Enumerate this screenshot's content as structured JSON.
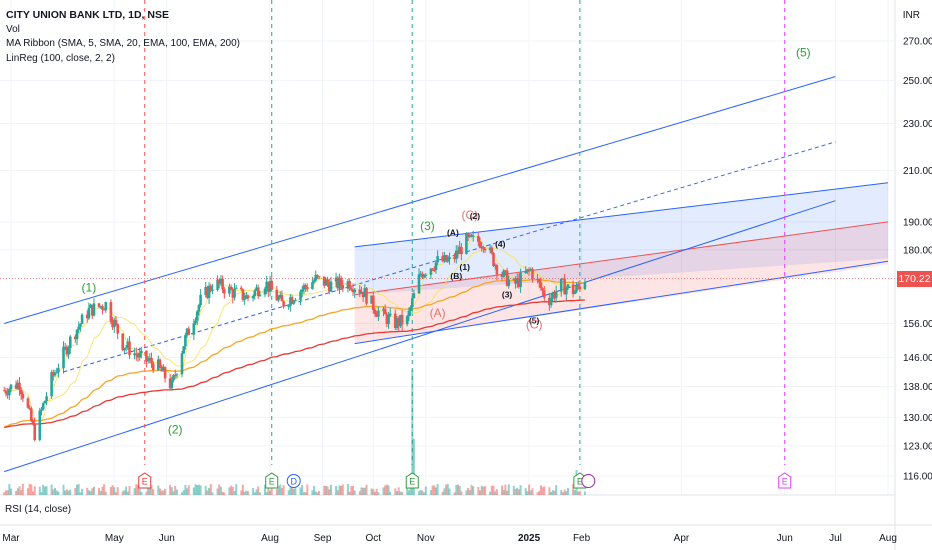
{
  "legend": {
    "symbol": "CITY UNION BANK LTD, 1D, NSE",
    "volume": "Vol",
    "ma_ribbon": "MA Ribbon (SMA, 5, SMA, 20, EMA, 100, EMA, 200)",
    "linreg": "LinReg (100, close, 2, 2)"
  },
  "rsi_label": "RSI (14, close)",
  "currency": "INR",
  "last_price": "170.22",
  "chart_data": {
    "type": "candlestick",
    "title": "CITY UNION BANK LTD, 1D, NSE",
    "y_axis": {
      "scale": "log",
      "ticks": [
        116,
        123,
        130,
        138,
        146,
        156,
        180,
        190,
        210,
        230,
        250,
        270
      ],
      "tick_labels": [
        "116.00",
        "123.00",
        "130.00",
        "138.00",
        "146.00",
        "156.00",
        "180.00",
        "190.00",
        "210.00",
        "230.00",
        "250.00",
        "270.00"
      ]
    },
    "x_axis": {
      "tick_labels": [
        "Mar",
        "May",
        "Jun",
        "Aug",
        "Sep",
        "Oct",
        "Nov",
        "2025",
        "Feb",
        "Apr",
        "Jun",
        "Jul",
        "Aug"
      ],
      "tick_dates": [
        "2024-03-01",
        "2024-05-01",
        "2024-06-01",
        "2024-08-01",
        "2024-09-01",
        "2024-10-01",
        "2024-11-01",
        "2025-01-01",
        "2025-02-01",
        "2025-04-01",
        "2025-06-01",
        "2025-07-01",
        "2025-08-01"
      ]
    },
    "price_path": [
      [
        "2024-02-26",
        137
      ],
      [
        "2024-03-06",
        139
      ],
      [
        "2024-03-15",
        126
      ],
      [
        "2024-03-25",
        140
      ],
      [
        "2024-04-06",
        152
      ],
      [
        "2024-04-16",
        160
      ],
      [
        "2024-04-26",
        162
      ],
      [
        "2024-05-06",
        150
      ],
      [
        "2024-05-16",
        146
      ],
      [
        "2024-05-26",
        144
      ],
      [
        "2024-06-04",
        138
      ],
      [
        "2024-06-11",
        150
      ],
      [
        "2024-06-21",
        163
      ],
      [
        "2024-06-29",
        169
      ],
      [
        "2024-07-09",
        166
      ],
      [
        "2024-07-19",
        164
      ],
      [
        "2024-07-29",
        169
      ],
      [
        "2024-08-08",
        162
      ],
      [
        "2024-08-18",
        166
      ],
      [
        "2024-08-28",
        170
      ],
      [
        "2024-09-07",
        168
      ],
      [
        "2024-09-17",
        169
      ],
      [
        "2024-09-25",
        166
      ],
      [
        "2024-10-03",
        160
      ],
      [
        "2024-10-13",
        156
      ],
      [
        "2024-10-21",
        157
      ],
      [
        "2024-10-29",
        172
      ],
      [
        "2024-11-08",
        176
      ],
      [
        "2024-11-16",
        176
      ],
      [
        "2024-11-25",
        183
      ],
      [
        "2024-12-05",
        183
      ],
      [
        "2024-12-15",
        172
      ],
      [
        "2024-12-23",
        168
      ],
      [
        "2025-01-02",
        173
      ],
      [
        "2025-01-12",
        163
      ],
      [
        "2025-01-20",
        168
      ],
      [
        "2025-01-28",
        166
      ],
      [
        "2025-02-03",
        170.22
      ]
    ],
    "volume_spikes": [
      [
        "2024-10-24",
        1.0
      ],
      [
        "2024-10-25",
        0.45
      ],
      [
        "2025-01-29",
        0.2
      ]
    ],
    "moving_averages": [
      {
        "name": "SMA 5",
        "color": "#f7e35b"
      },
      {
        "name": "SMA 20",
        "color": "#f7e35b"
      },
      {
        "name": "EMA 100",
        "color": "#f5a623"
      },
      {
        "name": "EMA 200",
        "color": "#e53935"
      }
    ],
    "channels": {
      "outer_upper": [
        [
          "2024-02-26",
          156
        ],
        [
          "2025-07-01",
          252
        ]
      ],
      "outer_lower": [
        [
          "2024-02-26",
          117
        ],
        [
          "2025-07-01",
          198
        ]
      ],
      "outer_mid": [
        [
          "2024-04-01",
          142
        ],
        [
          "2025-07-01",
          222
        ]
      ],
      "regression_blue_fill": [
        [
          "2024-09-20",
          181
        ],
        [
          "2025-08-01",
          205
        ],
        [
          "2025-08-01",
          177
        ],
        [
          "2024-09-20",
          165
        ]
      ],
      "regression_red_fill": [
        [
          "2024-09-20",
          165
        ],
        [
          "2025-08-01",
          190
        ],
        [
          "2025-08-01",
          175
        ],
        [
          "2024-09-20",
          150
        ]
      ],
      "support_line": [
        [
          "2024-09-20",
          150
        ],
        [
          "2025-08-01",
          176
        ]
      ]
    },
    "wave_labels": [
      {
        "text": "(1)",
        "date": "2024-04-16",
        "price": 166,
        "color": "#2e9e3a"
      },
      {
        "text": "(2)",
        "date": "2024-06-06",
        "price": 126,
        "color": "#2e9e3a"
      },
      {
        "text": "(3)",
        "date": "2024-11-02",
        "price": 187,
        "color": "#2e9e3a"
      },
      {
        "text": "(5)",
        "date": "2025-06-12",
        "price": 262,
        "color": "#2e9e3a"
      },
      {
        "text": "(A)",
        "date": "2024-11-08",
        "price": 158,
        "color": "#e57373"
      },
      {
        "text": "(C)",
        "date": "2024-11-27",
        "price": 191,
        "color": "#e57373"
      },
      {
        "text": "(A)",
        "date": "2024-11-17",
        "price": 185,
        "color": "#131722"
      },
      {
        "text": "(2)",
        "date": "2024-11-30",
        "price": 191,
        "color": "#131722"
      },
      {
        "text": "(1)",
        "date": "2024-11-24",
        "price": 173,
        "color": "#131722"
      },
      {
        "text": "(B)",
        "date": "2024-11-19",
        "price": 170,
        "color": "#131722"
      },
      {
        "text": "(4)",
        "date": "2024-12-15",
        "price": 181,
        "color": "#131722"
      },
      {
        "text": "(3)",
        "date": "2024-12-19",
        "price": 164,
        "color": "#131722"
      },
      {
        "text": "(5)",
        "date": "2025-01-04",
        "price": 156,
        "color": "#131722"
      },
      {
        "text": "(C)",
        "date": "2025-01-04",
        "price": 154.5,
        "color": "#e57373"
      }
    ],
    "event_markers": [
      {
        "text": "E",
        "date": "2024-05-19",
        "color": "#e53935",
        "line": "dashed",
        "line_color": "#ef5350"
      },
      {
        "text": "E",
        "date": "2024-08-02",
        "color": "#2e9e3a",
        "line": "dashed",
        "line_color": "#26a69a"
      },
      {
        "text": "D",
        "date": "2024-08-15",
        "color": "#2962ff",
        "line": "none",
        "line_color": ""
      },
      {
        "text": "E",
        "date": "2024-10-24",
        "color": "#2e9e3a",
        "line": "dashed",
        "line_color": "#26a69a"
      },
      {
        "text": "E",
        "date": "2025-01-31",
        "color": "#2e9e3a",
        "line": "dashed",
        "line_color": "#26a69a"
      },
      {
        "text": "",
        "date": "2025-02-05",
        "color": "#9c27b0",
        "line": "none",
        "line_color": ""
      },
      {
        "text": "E",
        "date": "2025-06-01",
        "color": "#e040fb",
        "line": "dashed",
        "line_color": "#e040fb"
      }
    ]
  }
}
